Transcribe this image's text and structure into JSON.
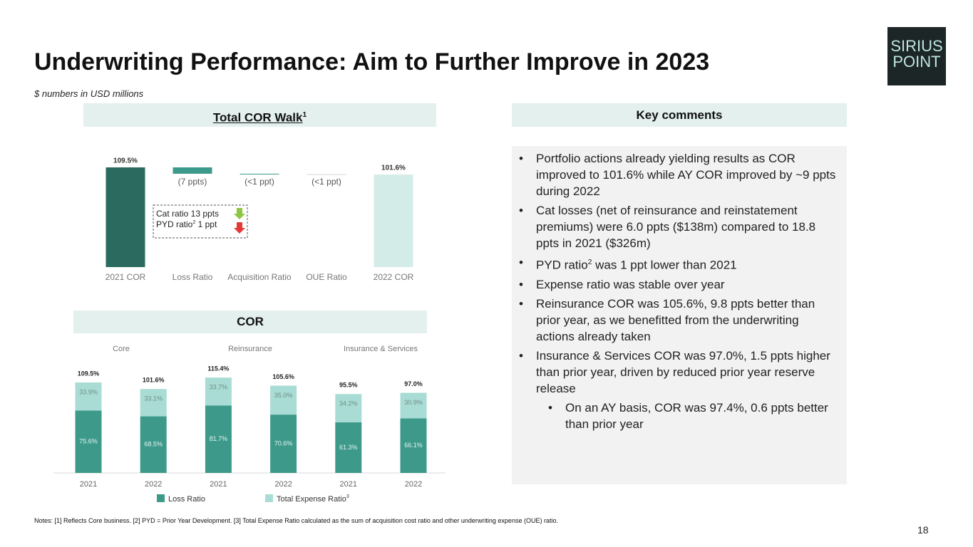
{
  "header": {
    "title": "Underwriting Performance: Aim to Further Improve in 2023",
    "subtitle": "$ numbers in USD millions"
  },
  "logo": {
    "lines": [
      "SIRIUS",
      "POINT"
    ]
  },
  "chart_data": [
    {
      "type": "waterfall",
      "title": "Total COR Walk",
      "title_note": "1",
      "categories": [
        "2021 COR",
        "Loss Ratio",
        "Acquisition Ratio",
        "OUE Ratio",
        "2022 COR"
      ],
      "values": [
        109.5,
        -7,
        -0.5,
        -0.4,
        101.6
      ],
      "value_labels": [
        "109.5%",
        "(7 ppts)",
        "(<1 ppt)",
        "(<1 ppt)",
        "101.6%"
      ],
      "totals": [
        true,
        false,
        false,
        false,
        true
      ],
      "colors": [
        "#2b6b5f",
        "#3d9a8b",
        "#3d9a8b",
        "#d9d9d9",
        "#d4ece8"
      ],
      "annotations": [
        [
          {
            "text": "Cat ratio 13 ppts"
          }
        ],
        [
          {
            "text": "PYD ratio"
          },
          {
            "sup": "2"
          },
          {
            "text": " 1 ppt"
          }
        ]
      ]
    },
    {
      "type": "stacked_bar",
      "title": "COR",
      "groups": [
        "Core",
        "Reinsurance",
        "Insurance & Services"
      ],
      "categories": [
        "2021",
        "2022",
        "2021",
        "2022",
        "2021",
        "2022"
      ],
      "series": [
        {
          "name": "Loss Ratio",
          "color": "#3d9a8b",
          "values": [
            75.6,
            68.5,
            81.7,
            70.6,
            61.3,
            66.1
          ],
          "value_labels": [
            "75.6%",
            "68.5%",
            "81.7%",
            "70.6%",
            "61.3%",
            "66.1%"
          ]
        },
        {
          "name": "Total Expense Ratio",
          "name_note": "3",
          "color": "#a8dcd4",
          "values": [
            33.9,
            33.1,
            33.7,
            35.0,
            34.2,
            30.9
          ],
          "value_labels": [
            "33.9%",
            "33.1%",
            "33.7%",
            "35.0%",
            "34.2%",
            "30.9%"
          ]
        }
      ],
      "totals": [
        109.5,
        101.6,
        115.4,
        105.6,
        95.5,
        97.0
      ],
      "total_labels": [
        "109.5%",
        "101.6%",
        "115.4%",
        "105.6%",
        "95.5%",
        "97.0%"
      ]
    }
  ],
  "comments": {
    "title": "Key comments",
    "items": [
      {
        "level": 1,
        "segments": [
          {
            "text": "Portfolio actions already yielding results as COR improved to 101.6% while AY COR improved by ~9 ppts during 2022"
          }
        ]
      },
      {
        "level": 1,
        "segments": [
          {
            "text": "Cat losses (net of reinsurance and reinstatement premiums) were 6.0 ppts ($138m) compared to 18.8 ppts in 2021 ($326m)"
          }
        ]
      },
      {
        "level": 1,
        "segments": [
          {
            "text": "PYD ratio"
          },
          {
            "sup": "2"
          },
          {
            "text": " was 1 ppt lower than 2021"
          }
        ]
      },
      {
        "level": 1,
        "segments": [
          {
            "text": "Expense ratio was stable over year"
          }
        ]
      },
      {
        "level": 1,
        "segments": [
          {
            "text": "Reinsurance COR was 105.6%, 9.8 ppts better than prior year, as we benefitted from the underwriting actions already taken"
          }
        ]
      },
      {
        "level": 1,
        "segments": [
          {
            "text": "Insurance & Services COR was 97.0%, 1.5 ppts higher than prior year, driven by reduced prior year reserve release"
          }
        ]
      },
      {
        "level": 2,
        "segments": [
          {
            "text": "On an AY basis, COR was 97.4%, 0.6 ppts better than prior year"
          }
        ]
      }
    ]
  },
  "notes": "Notes: [1] Reflects Core business. [2] PYD = Prior Year Development. [3] Total Expense Ratio calculated as the sum of acquisition cost ratio and other underwriting expense (OUE) ratio.",
  "page_number": "18"
}
